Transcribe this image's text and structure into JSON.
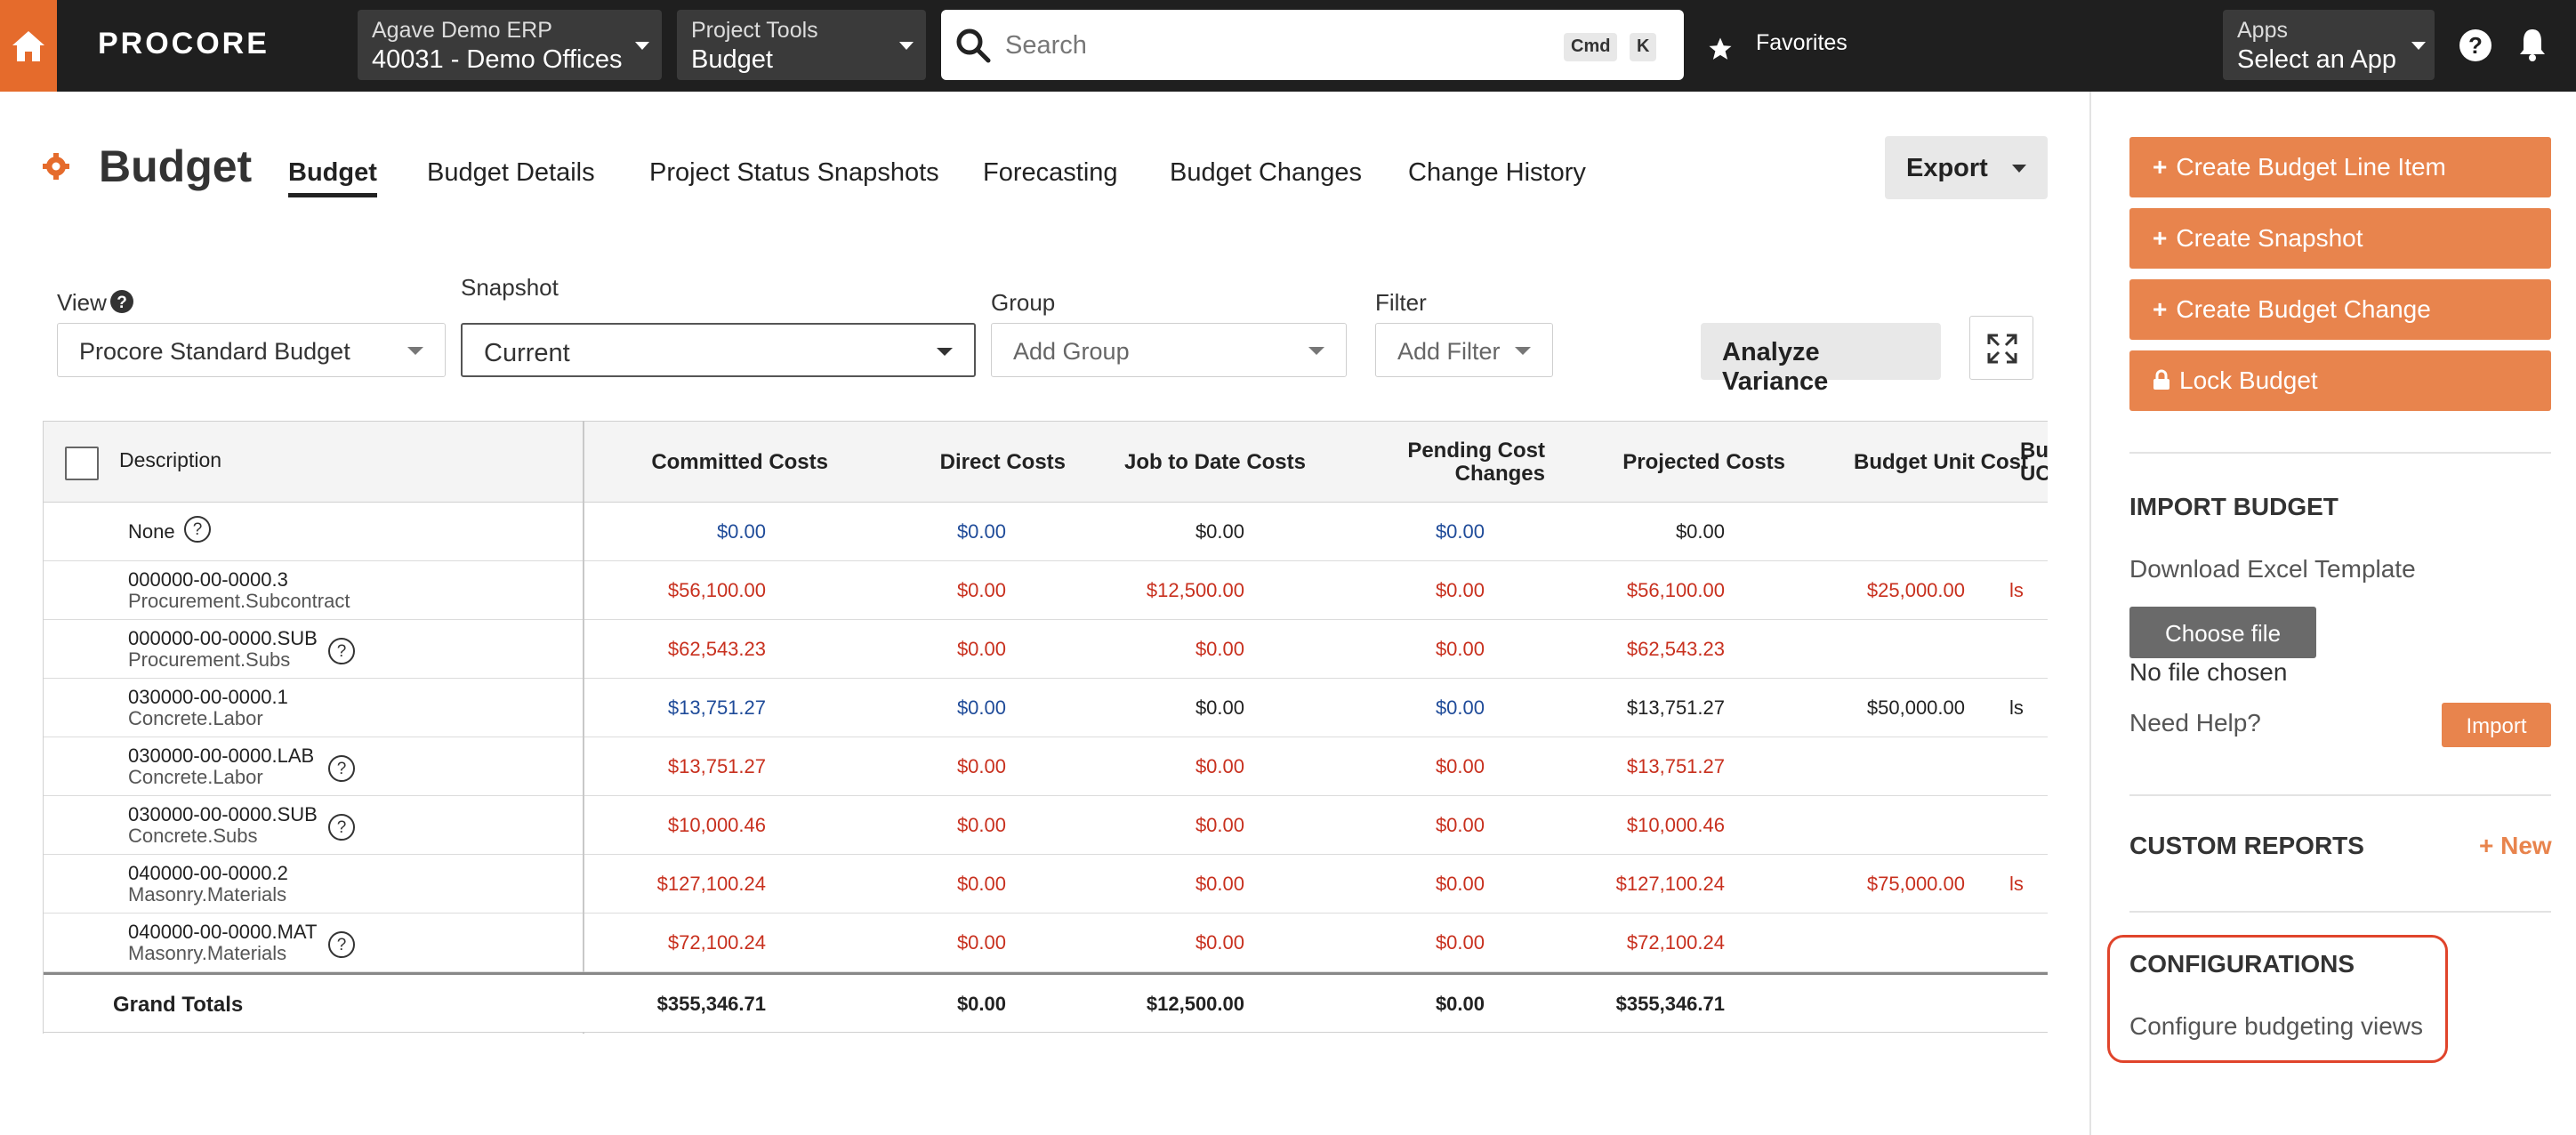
{
  "topnav": {
    "logo": "PROCORE",
    "company": {
      "label": "Agave Demo ERP",
      "value": "40031 - Demo Offices"
    },
    "tool": {
      "label": "Project Tools",
      "value": "Budget"
    },
    "search": {
      "placeholder": "Search",
      "kbd1": "Cmd",
      "kbd2": "K"
    },
    "favorites": "Favorites",
    "apps": {
      "label": "Apps",
      "value": "Select an App"
    }
  },
  "header": {
    "title": "Budget",
    "tabs": [
      "Budget",
      "Budget Details",
      "Project Status Snapshots",
      "Forecasting",
      "Budget Changes",
      "Change History"
    ],
    "export": "Export"
  },
  "filters": {
    "view_label": "View",
    "view_value": "Procore Standard Budget",
    "snapshot_label": "Snapshot",
    "snapshot_value": "Current",
    "group_label": "Group",
    "group_value": "Add Group",
    "filter_label": "Filter",
    "filter_value": "Add Filter",
    "analyze": "Analyze Variance"
  },
  "table": {
    "headers": [
      "Description",
      "Committed Costs",
      "Direct Costs",
      "Job to Date Costs",
      "Pending Cost Changes",
      "Projected Costs",
      "Budget Unit Cost",
      "Bu UC"
    ],
    "rows": [
      {
        "code": "None",
        "sub": "",
        "q": true,
        "committed": "$0.00",
        "direct": "$0.00",
        "jtd": "$0.00",
        "pending": "$0.00",
        "projected": "$0.00",
        "unit": "",
        "uom": "",
        "c": [
          "blue",
          "blue",
          "blk",
          "blue",
          "blk",
          "blk"
        ]
      },
      {
        "code": "000000-00-0000.3",
        "sub": "Procurement.Subcontract",
        "q": false,
        "committed": "$56,100.00",
        "direct": "$0.00",
        "jtd": "$12,500.00",
        "pending": "$0.00",
        "projected": "$56,100.00",
        "unit": "$25,000.00",
        "uom": "ls",
        "c": [
          "red",
          "red",
          "red",
          "red",
          "red",
          "red"
        ]
      },
      {
        "code": "000000-00-0000.SUB",
        "sub": "Procurement.Subs",
        "q": true,
        "committed": "$62,543.23",
        "direct": "$0.00",
        "jtd": "$0.00",
        "pending": "$0.00",
        "projected": "$62,543.23",
        "unit": "",
        "uom": "",
        "c": [
          "red",
          "red",
          "red",
          "red",
          "red",
          "red"
        ]
      },
      {
        "code": "030000-00-0000.1",
        "sub": "Concrete.Labor",
        "q": false,
        "committed": "$13,751.27",
        "direct": "$0.00",
        "jtd": "$0.00",
        "pending": "$0.00",
        "projected": "$13,751.27",
        "unit": "$50,000.00",
        "uom": "ls",
        "c": [
          "blue",
          "blue",
          "blk",
          "blue",
          "blk",
          "blk"
        ]
      },
      {
        "code": "030000-00-0000.LAB",
        "sub": "Concrete.Labor",
        "q": true,
        "committed": "$13,751.27",
        "direct": "$0.00",
        "jtd": "$0.00",
        "pending": "$0.00",
        "projected": "$13,751.27",
        "unit": "",
        "uom": "",
        "c": [
          "red",
          "red",
          "red",
          "red",
          "red",
          "red"
        ]
      },
      {
        "code": "030000-00-0000.SUB",
        "sub": "Concrete.Subs",
        "q": true,
        "committed": "$10,000.46",
        "direct": "$0.00",
        "jtd": "$0.00",
        "pending": "$0.00",
        "projected": "$10,000.46",
        "unit": "",
        "uom": "",
        "c": [
          "red",
          "red",
          "red",
          "red",
          "red",
          "red"
        ]
      },
      {
        "code": "040000-00-0000.2",
        "sub": "Masonry.Materials",
        "q": false,
        "committed": "$127,100.24",
        "direct": "$0.00",
        "jtd": "$0.00",
        "pending": "$0.00",
        "projected": "$127,100.24",
        "unit": "$75,000.00",
        "uom": "ls",
        "c": [
          "red",
          "red",
          "red",
          "red",
          "red",
          "red"
        ]
      },
      {
        "code": "040000-00-0000.MAT",
        "sub": "Masonry.Materials",
        "q": true,
        "committed": "$72,100.24",
        "direct": "$0.00",
        "jtd": "$0.00",
        "pending": "$0.00",
        "projected": "$72,100.24",
        "unit": "",
        "uom": "",
        "c": [
          "red",
          "red",
          "red",
          "red",
          "red",
          "red"
        ]
      }
    ],
    "totals": {
      "label": "Grand Totals",
      "committed": "$355,346.71",
      "direct": "$0.00",
      "jtd": "$12,500.00",
      "pending": "$0.00",
      "projected": "$355,346.71"
    }
  },
  "sidebar": {
    "actions": [
      "Create Budget Line Item",
      "Create Snapshot",
      "Create Budget Change",
      "Lock Budget"
    ],
    "import_title": "IMPORT BUDGET",
    "download": "Download Excel Template",
    "choose_file": "Choose file",
    "no_file": "No file chosen",
    "need_help": "Need Help?",
    "import_btn": "Import",
    "custom_reports": "CUSTOM REPORTS",
    "new_link": "+ New",
    "configurations": "CONFIGURATIONS",
    "configure_link": "Configure budgeting views"
  },
  "colors": {
    "accent": "#e8844d",
    "brand": "#e56b2c",
    "negative": "#c8301e",
    "link": "#1f4b99",
    "highlight": "#e0442b"
  }
}
